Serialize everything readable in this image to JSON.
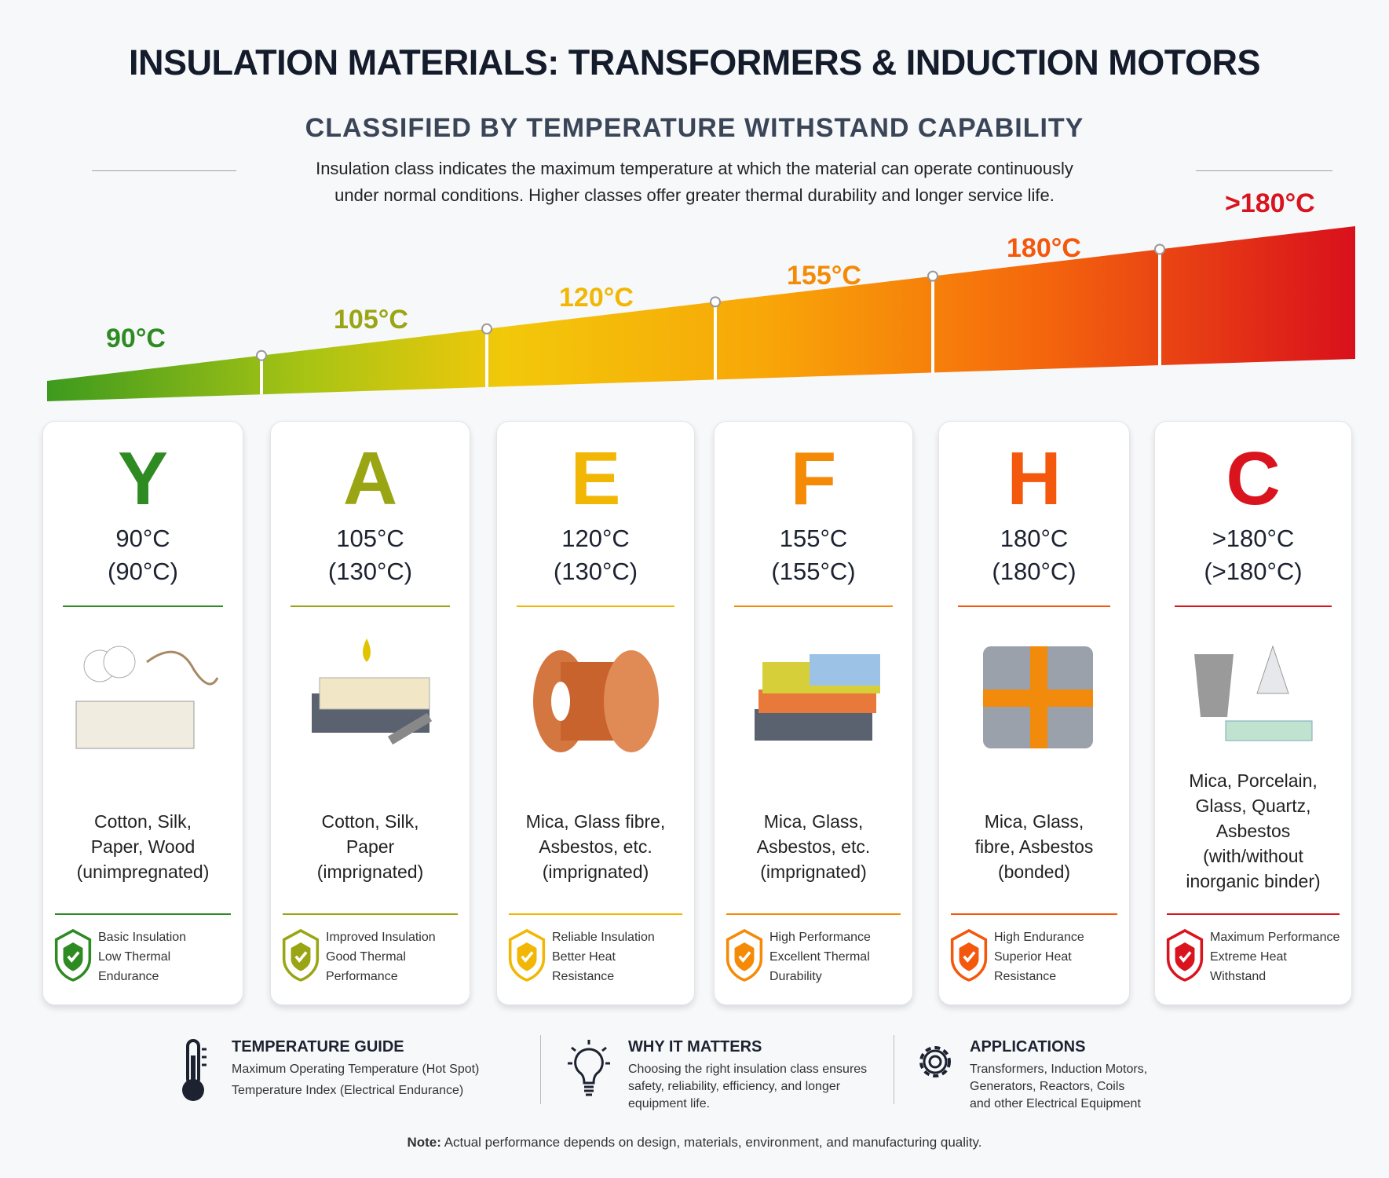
{
  "title": "INSULATION MATERIALS: TRANSFORMERS & INDUCTION MOTORS",
  "subtitle": "CLASSIFIED BY TEMPERATURE WITHSTAND CAPABILITY",
  "description": [
    "Insulation class indicates the maximum temperature at which the material can operate continuously",
    "under normal conditions. Higher classes offer greater thermal durability and longer service life."
  ],
  "scale_labels": [
    "90°C",
    "105°C",
    "120°C",
    "155°C",
    "180°C",
    ">180°C"
  ],
  "classes": [
    {
      "letter": "Y",
      "temp": "90°C",
      "index": "(90°C)",
      "color": "#2e8b22",
      "materials": [
        "Cotton, Silk,",
        "Paper, Wood",
        "(unimpregnated)"
      ],
      "badge": [
        "Basic Insulation",
        "Low Thermal",
        "Endurance"
      ]
    },
    {
      "letter": "A",
      "temp": "105°C",
      "index": "(130°C)",
      "color": "#9aa514",
      "materials": [
        "Cotton, Silk,",
        "Paper",
        "(imprignated)"
      ],
      "badge": [
        "Improved Insulation",
        "Good Thermal",
        "Performance"
      ]
    },
    {
      "letter": "E",
      "temp": "120°C",
      "index": "(130°C)",
      "color": "#f2b705",
      "materials": [
        "Mica, Glass fibre,",
        "Asbestos, etc.",
        "(imprignated)"
      ],
      "badge": [
        "Reliable Insulation",
        "Better Heat",
        "Resistance"
      ]
    },
    {
      "letter": "F",
      "temp": "155°C",
      "index": "(155°C)",
      "color": "#f58a07",
      "materials": [
        "Mica, Glass,",
        "Asbestos, etc.",
        "(imprignated)"
      ],
      "badge": [
        "High Performance",
        "Excellent Thermal",
        "Durability"
      ]
    },
    {
      "letter": "H",
      "temp": "180°C",
      "index": "(180°C)",
      "color": "#f4580c",
      "materials": [
        "Mica, Glass,",
        "fibre, Asbestos",
        "(bonded)"
      ],
      "badge": [
        "High Endurance",
        "Superior Heat",
        "Resistance"
      ]
    },
    {
      "letter": "C",
      "temp": ">180°C",
      "index": "(>180°C)",
      "color": "#d9141e",
      "materials": [
        "Mica, Porcelain,",
        "Glass, Quartz,",
        "Asbestos",
        "(with/without",
        "inorganic binder)"
      ],
      "badge": [
        "Maximum Performance",
        "Extreme Heat",
        "Withstand"
      ]
    }
  ],
  "footer": {
    "temperature_guide": {
      "title": "TEMPERATURE GUIDE",
      "lines": [
        "Maximum Operating Temperature (Hot Spot)",
        "Temperature Index (Electrical Endurance)"
      ]
    },
    "why_it_matters": {
      "title": "WHY IT MATTERS",
      "lines": [
        "Choosing the right insulation class ensures",
        "safety, reliability, efficiency, and longer",
        "equipment life."
      ]
    },
    "applications": {
      "title": "APPLICATIONS",
      "lines": [
        "Transformers, Induction Motors,",
        "Generators, Reactors, Coils",
        "and other Electrical Equipment"
      ]
    }
  },
  "note": {
    "label": "Note:",
    "text": " Actual performance depends on design, materials, environment, and manufacturing quality."
  }
}
